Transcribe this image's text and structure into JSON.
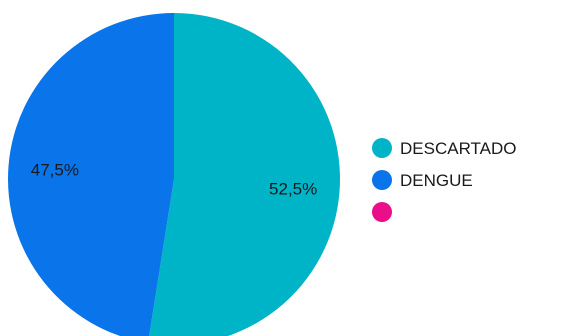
{
  "chart_data": {
    "type": "pie",
    "title": "",
    "legend_position": "right",
    "slices": [
      {
        "label": "DESCARTADO",
        "value": 52.5,
        "display": "52,5%",
        "color": "#00b4c8"
      },
      {
        "label": "DENGUE",
        "value": 47.5,
        "display": "47,5%",
        "color": "#0a74ea"
      },
      {
        "label": "",
        "value": 0,
        "display": "",
        "color": "#ea0e8b"
      }
    ]
  }
}
